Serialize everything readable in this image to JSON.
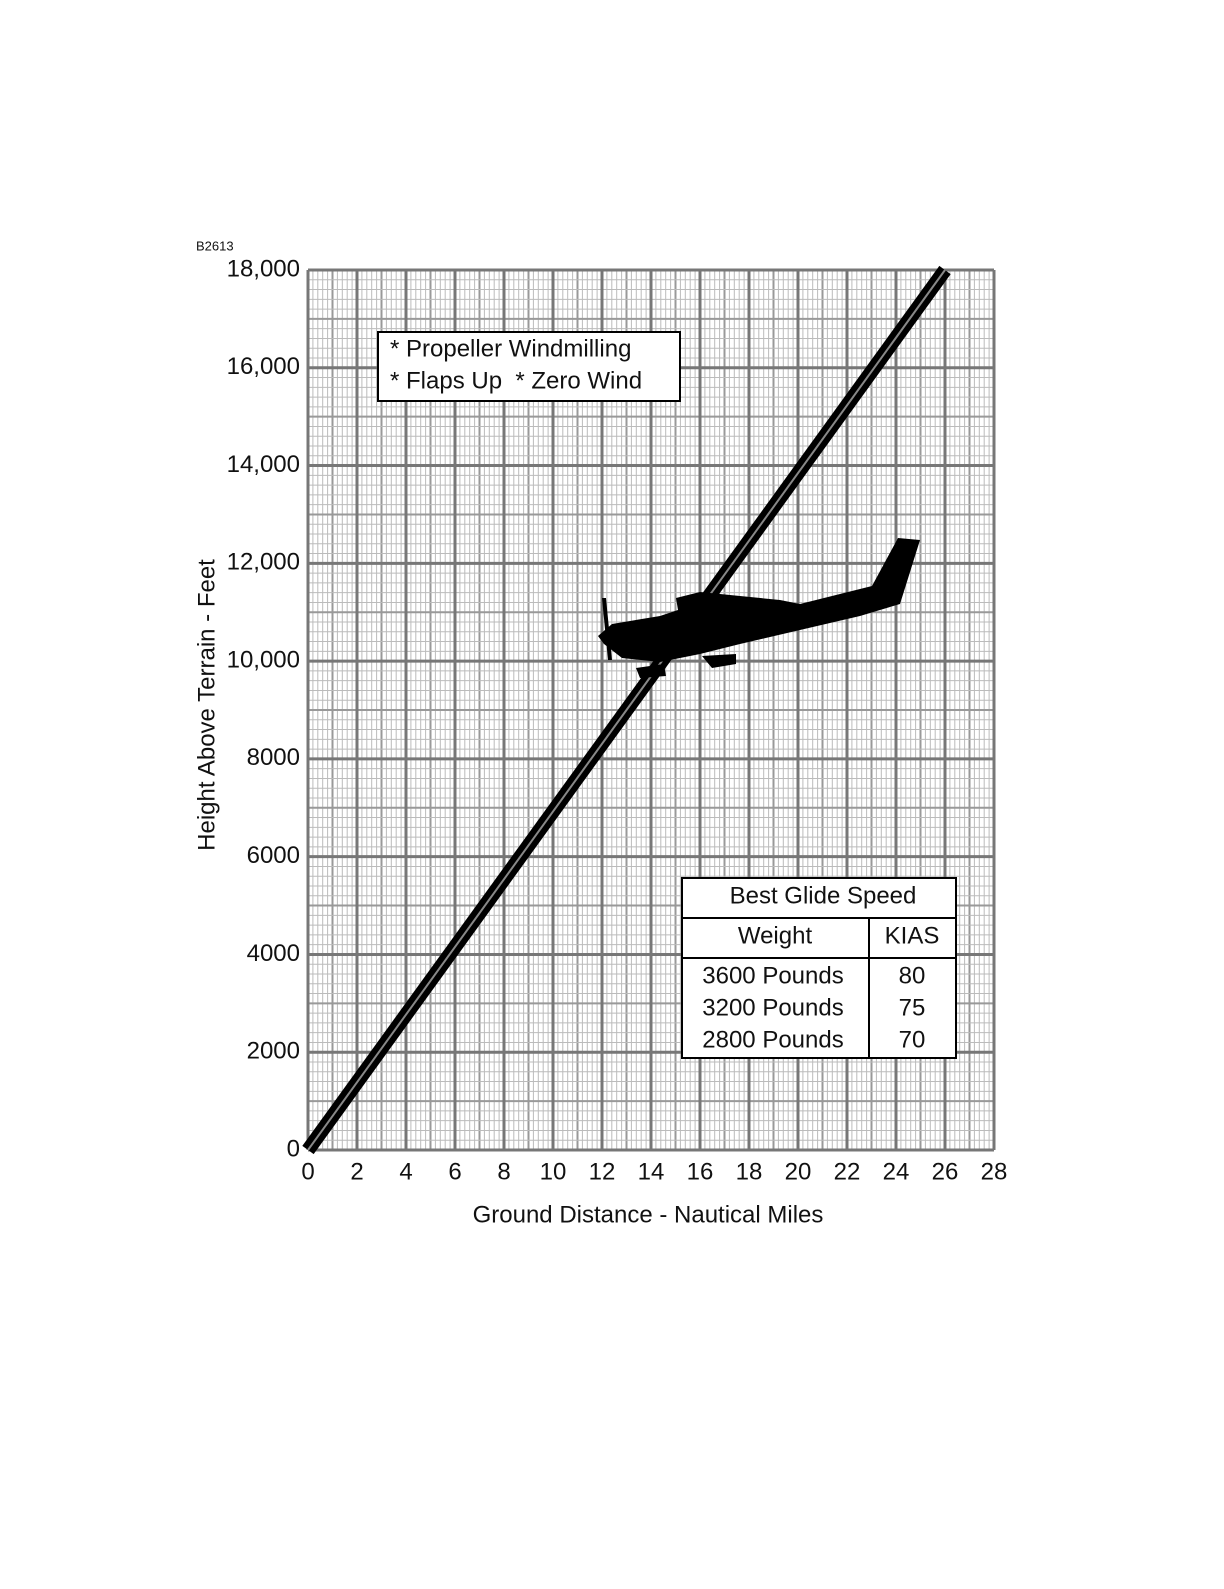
{
  "chart_data": {
    "type": "line",
    "figure_id": "B2613",
    "x_label": "Ground Distance - Nautical Miles",
    "y_label": "Height Above Terrain - Feet",
    "annotations": [
      "* Propeller Windmilling",
      "* Flaps Up  * Zero Wind"
    ],
    "x": [
      0,
      26
    ],
    "series": [
      {
        "color": "#000000",
        "values": [
          0,
          18000
        ]
      }
    ],
    "xlim": [
      0,
      28
    ],
    "xticks": [
      0,
      2,
      4,
      6,
      8,
      10,
      12,
      14,
      16,
      18,
      20,
      22,
      24,
      26,
      28
    ],
    "ylim": [
      0,
      18000
    ],
    "yticks": [
      0,
      2000,
      4000,
      6000,
      8000,
      {
        "value": 10000,
        "label": "10,000"
      },
      {
        "value": 12000,
        "label": "12,000"
      },
      {
        "value": 14000,
        "label": "14,000"
      },
      {
        "value": 16000,
        "label": "16,000"
      },
      {
        "value": 18000,
        "label": "18,000"
      }
    ],
    "grid": true,
    "minor_grid_divisions": 10,
    "table": {
      "title": "Best Glide Speed",
      "columns": [
        "Weight",
        "KIAS"
      ],
      "rows": [
        [
          "3600 Pounds",
          "80"
        ],
        [
          "3200 Pounds",
          "75"
        ],
        [
          "2800 Pounds",
          "70"
        ]
      ]
    }
  }
}
